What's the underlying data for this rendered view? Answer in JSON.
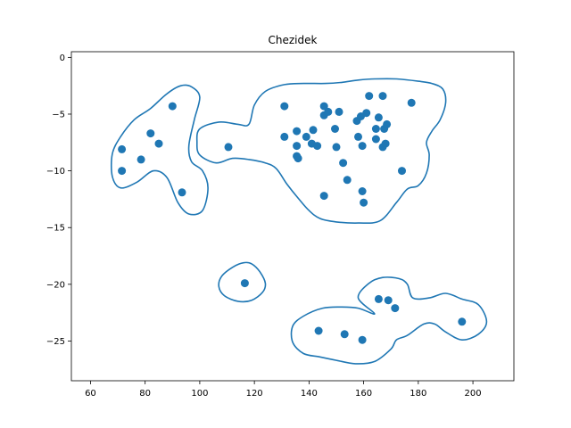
{
  "chart_data": {
    "type": "scatter",
    "title": "Chezidek",
    "xlabel": "",
    "ylabel": "",
    "xlim": [
      53,
      215
    ],
    "ylim": [
      -28.5,
      0.5
    ],
    "xticks": [
      60,
      80,
      100,
      120,
      140,
      160,
      180,
      200
    ],
    "yticks": [
      0,
      -5,
      -10,
      -15,
      -20,
      -25
    ],
    "grid": false,
    "legend": "none",
    "color": "#1f77b4",
    "points": [
      [
        71.5,
        -8.1
      ],
      [
        71.5,
        -10.0
      ],
      [
        78.5,
        -9.0
      ],
      [
        82.0,
        -6.7
      ],
      [
        85.0,
        -7.6
      ],
      [
        90.0,
        -4.3
      ],
      [
        93.5,
        -11.9
      ],
      [
        110.5,
        -7.9
      ],
      [
        116.5,
        -19.9
      ],
      [
        131.0,
        -4.3
      ],
      [
        131.0,
        -7.0
      ],
      [
        135.5,
        -6.5
      ],
      [
        135.5,
        -7.8
      ],
      [
        135.5,
        -8.7
      ],
      [
        136.0,
        -8.9
      ],
      [
        139.0,
        -7.0
      ],
      [
        141.0,
        -7.6
      ],
      [
        141.5,
        -6.4
      ],
      [
        143.0,
        -7.8
      ],
      [
        143.5,
        -24.1
      ],
      [
        145.5,
        -4.3
      ],
      [
        145.5,
        -5.1
      ],
      [
        145.5,
        -12.2
      ],
      [
        147.0,
        -4.8
      ],
      [
        149.5,
        -6.3
      ],
      [
        150.0,
        -7.9
      ],
      [
        151.0,
        -4.8
      ],
      [
        152.5,
        -9.3
      ],
      [
        153.0,
        -24.4
      ],
      [
        154.0,
        -10.8
      ],
      [
        157.5,
        -5.6
      ],
      [
        158.0,
        -7.0
      ],
      [
        159.0,
        -5.2
      ],
      [
        159.5,
        -7.8
      ],
      [
        159.5,
        -11.8
      ],
      [
        159.5,
        -24.9
      ],
      [
        160.0,
        -12.8
      ],
      [
        161.0,
        -4.9
      ],
      [
        162.0,
        -3.4
      ],
      [
        164.5,
        -6.3
      ],
      [
        164.5,
        -7.2
      ],
      [
        165.5,
        -5.3
      ],
      [
        165.5,
        -21.3
      ],
      [
        167.0,
        -3.4
      ],
      [
        167.0,
        -7.9
      ],
      [
        167.5,
        -6.3
      ],
      [
        168.0,
        -7.6
      ],
      [
        168.5,
        -5.9
      ],
      [
        169.0,
        -21.4
      ],
      [
        171.5,
        -22.1
      ],
      [
        174.0,
        -10.0
      ],
      [
        177.5,
        -4.0
      ],
      [
        196.0,
        -23.3
      ]
    ],
    "contours": [
      [
        [
          93,
          -2.5
        ],
        [
          88,
          -3.2
        ],
        [
          82,
          -4.5
        ],
        [
          76,
          -5.5
        ],
        [
          71,
          -7
        ],
        [
          68,
          -8.5
        ],
        [
          68,
          -10.5
        ],
        [
          71,
          -11.5
        ],
        [
          77,
          -11
        ],
        [
          83,
          -10
        ],
        [
          88,
          -10.6
        ],
        [
          92,
          -12.8
        ],
        [
          96,
          -13.8
        ],
        [
          101,
          -13.5
        ],
        [
          103,
          -11.5
        ],
        [
          101,
          -10
        ],
        [
          97,
          -9.2
        ],
        [
          96,
          -7.8
        ],
        [
          98,
          -5.5
        ],
        [
          100,
          -3.5
        ],
        [
          97,
          -2.6
        ]
      ],
      [
        [
          131,
          -2.4
        ],
        [
          124,
          -3
        ],
        [
          120,
          -4.2
        ],
        [
          118,
          -5.9
        ],
        [
          114,
          -5.9
        ],
        [
          107,
          -5.7
        ],
        [
          100,
          -6.3
        ],
        [
          99,
          -7.5
        ],
        [
          100,
          -8.6
        ],
        [
          106,
          -9.3
        ],
        [
          112,
          -8.9
        ],
        [
          118,
          -9
        ],
        [
          124,
          -9.3
        ],
        [
          128,
          -9.8
        ],
        [
          132,
          -11.2
        ],
        [
          136,
          -12.4
        ],
        [
          140,
          -13.5
        ],
        [
          144,
          -14.2
        ],
        [
          150,
          -14.5
        ],
        [
          158,
          -14.6
        ],
        [
          166,
          -14.4
        ],
        [
          172,
          -12.8
        ],
        [
          176,
          -11.6
        ],
        [
          180,
          -11.3
        ],
        [
          183,
          -10.2
        ],
        [
          184,
          -8.6
        ],
        [
          183,
          -7.5
        ],
        [
          185,
          -6.5
        ],
        [
          188,
          -5.5
        ],
        [
          190,
          -4
        ],
        [
          189,
          -2.8
        ],
        [
          185,
          -2.3
        ],
        [
          180,
          -2.1
        ],
        [
          172,
          -1.9
        ],
        [
          164,
          -1.9
        ],
        [
          158,
          -2
        ],
        [
          152,
          -2.2
        ],
        [
          146,
          -2.3
        ],
        [
          138,
          -2.3
        ]
      ],
      [
        [
          116,
          -18.1
        ],
        [
          112,
          -18.5
        ],
        [
          108,
          -19.3
        ],
        [
          107,
          -20.2
        ],
        [
          109,
          -21
        ],
        [
          114,
          -21.5
        ],
        [
          119,
          -21.4
        ],
        [
          123,
          -20.7
        ],
        [
          124,
          -19.9
        ],
        [
          122,
          -18.9
        ],
        [
          119,
          -18.2
        ]
      ],
      [
        [
          164,
          -22.6
        ],
        [
          158,
          -22.1
        ],
        [
          152,
          -22.0
        ],
        [
          145,
          -22.1
        ],
        [
          138,
          -22.8
        ],
        [
          134,
          -23.7
        ],
        [
          134,
          -25.1
        ],
        [
          138,
          -26.1
        ],
        [
          144,
          -26.4
        ],
        [
          150,
          -26.7
        ],
        [
          157,
          -27.0
        ],
        [
          164,
          -26.8
        ],
        [
          170,
          -25.7
        ],
        [
          172,
          -24.9
        ],
        [
          176,
          -24.5
        ],
        [
          182,
          -23.5
        ],
        [
          186,
          -23.5
        ],
        [
          190,
          -24.2
        ],
        [
          196,
          -24.9
        ],
        [
          202,
          -24.4
        ],
        [
          205,
          -23.3
        ],
        [
          202,
          -21.8
        ],
        [
          196,
          -21.3
        ],
        [
          190,
          -20.8
        ],
        [
          184,
          -21.2
        ],
        [
          178,
          -21.2
        ],
        [
          176,
          -20.0
        ],
        [
          173,
          -19.5
        ],
        [
          167,
          -19.4
        ],
        [
          162,
          -19.9
        ],
        [
          158,
          -21.2
        ]
      ]
    ]
  }
}
